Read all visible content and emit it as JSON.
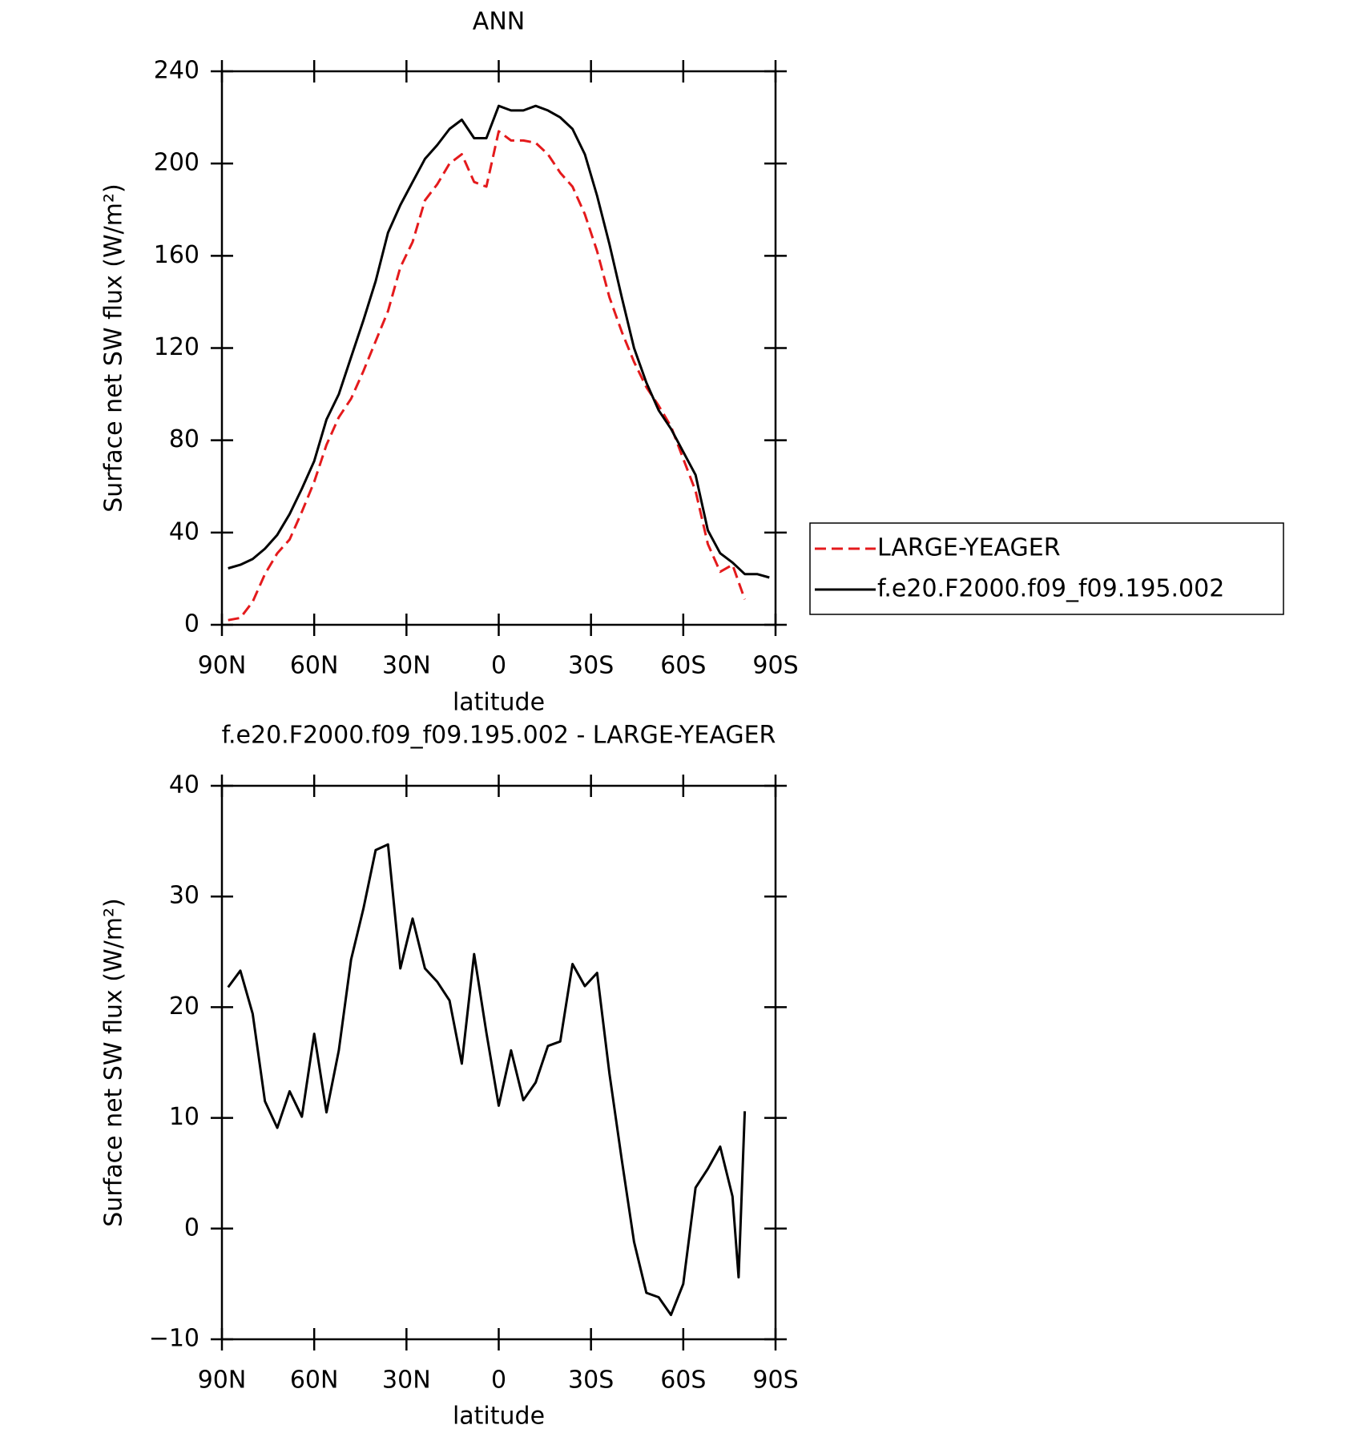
{
  "chart_data": [
    {
      "type": "line",
      "title": "ANN",
      "xlabel": "latitude",
      "ylabel": "Surface net SW flux (W/m²)",
      "x": [
        88,
        84,
        80,
        76,
        72,
        68,
        64,
        60,
        56,
        52,
        48,
        44,
        40,
        36,
        32,
        28,
        24,
        20,
        16,
        12,
        8,
        4,
        0,
        -4,
        -8,
        -12,
        -16,
        -20,
        -24,
        -28,
        -32,
        -36,
        -40,
        -44,
        -48,
        -52,
        -56,
        -60,
        -64,
        -68,
        -72,
        -76,
        -80,
        -84,
        -88
      ],
      "series": [
        {
          "name": "LARGE-YEAGER",
          "color": "#e41a1c",
          "dashed": true,
          "values": [
            2,
            3,
            10,
            22,
            31,
            37,
            49,
            62,
            78,
            90,
            98,
            110,
            123,
            136,
            155,
            166,
            184,
            191,
            200,
            204,
            192,
            190,
            214,
            210,
            210,
            209,
            204,
            196,
            190,
            178,
            162,
            142,
            127,
            114,
            103,
            95,
            86,
            72,
            58,
            35,
            23,
            26,
            11,
            null,
            null
          ]
        },
        {
          "name": "f.e20.F2000.f09_f09.195.002",
          "color": "#000000",
          "dashed": false,
          "values": [
            24.5,
            26,
            28.5,
            33,
            39,
            48,
            59,
            71,
            89,
            100,
            116,
            132,
            149,
            170,
            182,
            192,
            202,
            208,
            215,
            219,
            211,
            211,
            225,
            223,
            223,
            225,
            223,
            220,
            215,
            204,
            186,
            165,
            142,
            120,
            105,
            93,
            85,
            75,
            65,
            41,
            31,
            27,
            22,
            22,
            20.5
          ]
        }
      ],
      "xlim": [
        90,
        -90
      ],
      "ylim": [
        0,
        240
      ],
      "xticks": [
        {
          "value": 90,
          "label": "90N"
        },
        {
          "value": 60,
          "label": "60N"
        },
        {
          "value": 30,
          "label": "30N"
        },
        0,
        {
          "value": -30,
          "label": "30S"
        },
        {
          "value": -60,
          "label": "60S"
        },
        {
          "value": -90,
          "label": "90S"
        }
      ],
      "yticks": [
        0,
        40,
        80,
        120,
        160,
        200,
        240
      ],
      "legend": "right"
    },
    {
      "type": "line",
      "title": "f.e20.F2000.f09_f09.195.002 - LARGE-YEAGER",
      "xlabel": "latitude",
      "ylabel": "Surface net SW flux (W/m²)",
      "x": [
        88,
        84,
        80,
        76,
        72,
        68,
        64,
        60,
        56,
        52,
        48,
        44,
        40,
        36,
        32,
        28,
        24,
        20,
        16,
        12,
        8,
        4,
        0,
        -4,
        -8,
        -12,
        -16,
        -20,
        -24,
        -28,
        -32,
        -36,
        -40,
        -44,
        -48,
        -52,
        -56,
        -60,
        -64,
        -68,
        -72,
        -76,
        -78,
        -80
      ],
      "series": [
        {
          "name": "f.e20.F2000.f09_f09.195.002 - LARGE-YEAGER",
          "color": "#000000",
          "dashed": false,
          "values": [
            21.8,
            23.3,
            19.4,
            11.5,
            9.1,
            12.4,
            10.1,
            17.6,
            10.5,
            16.1,
            24.3,
            28.9,
            34.2,
            34.7,
            23.5,
            28.0,
            23.5,
            22.3,
            20.6,
            14.9,
            24.8,
            17.7,
            11.1,
            16.1,
            11.6,
            13.2,
            16.5,
            16.9,
            23.9,
            21.9,
            23.1,
            14.0,
            6.2,
            -1.2,
            -5.8,
            -6.2,
            -7.8,
            -5.0,
            3.7,
            5.4,
            7.4,
            2.9,
            -4.4,
            10.6
          ]
        }
      ],
      "xlim": [
        90,
        -90
      ],
      "ylim": [
        -10,
        40
      ],
      "xticks": [
        {
          "value": 90,
          "label": "90N"
        },
        {
          "value": 60,
          "label": "60N"
        },
        {
          "value": 30,
          "label": "30N"
        },
        0,
        {
          "value": -30,
          "label": "30S"
        },
        {
          "value": -60,
          "label": "60S"
        },
        {
          "value": -90,
          "label": "90S"
        }
      ],
      "yticks": [
        {
          "value": -10,
          "label": "−10"
        },
        0,
        10,
        20,
        30,
        40
      ]
    }
  ]
}
